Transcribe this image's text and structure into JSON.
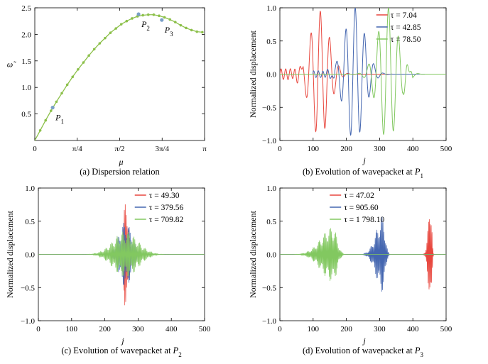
{
  "chart_data": [
    {
      "type": "line",
      "caption": "(a) Dispersion relation",
      "xlabel": "μ",
      "ylabel": "ω̃",
      "xlim": [
        0,
        3.14159
      ],
      "ylim": [
        0,
        2.5
      ],
      "xticks": [
        0,
        0.7854,
        1.5708,
        2.3562,
        3.14159
      ],
      "xtick_labels": [
        "0",
        "π/4",
        "π/2",
        "3π/4",
        "π"
      ],
      "yticks": [
        0.5,
        1.0,
        1.5,
        2.0,
        2.5
      ],
      "ytick_labels": [
        "0.5",
        "1.0",
        "1.5",
        "2.0",
        "2.5"
      ],
      "series": [
        {
          "color": "#8cc04a",
          "x": [
            0,
            0.1,
            0.2,
            0.3,
            0.4,
            0.5,
            0.6,
            0.7,
            0.8,
            0.9,
            1.0,
            1.1,
            1.2,
            1.3,
            1.4,
            1.5,
            1.6,
            1.7,
            1.8,
            1.9,
            2.0,
            2.1,
            2.2,
            2.3,
            2.4,
            2.5,
            2.6,
            2.7,
            2.8,
            2.9,
            3.0,
            3.1
          ],
          "y": [
            0,
            0.19,
            0.38,
            0.56,
            0.73,
            0.89,
            1.05,
            1.2,
            1.34,
            1.47,
            1.6,
            1.72,
            1.83,
            1.93,
            2.03,
            2.11,
            2.19,
            2.25,
            2.3,
            2.34,
            2.36,
            2.37,
            2.37,
            2.35,
            2.32,
            2.28,
            2.23,
            2.17,
            2.12,
            2.08,
            2.05,
            2.04
          ]
        }
      ],
      "annotations": [
        {
          "label": "P",
          "sub": "1",
          "x": 0.33,
          "y": 0.62
        },
        {
          "label": "P",
          "sub": "2",
          "x": 1.92,
          "y": 2.38
        },
        {
          "label": "P",
          "sub": "3",
          "x": 2.35,
          "y": 2.27
        }
      ]
    },
    {
      "type": "line",
      "caption": "(b) Evolution of wavepacket at",
      "caption_point": {
        "label": "P",
        "sub": "1"
      },
      "xlabel": "j",
      "ylabel": "Normalized displacement",
      "xlim": [
        0,
        500
      ],
      "ylim": [
        -1.0,
        1.0
      ],
      "xticks": [
        0,
        100,
        200,
        300,
        400,
        500
      ],
      "yticks": [
        -1.0,
        -0.5,
        0.0,
        0.5,
        1.0
      ],
      "ytick_labels": [
        "−1.0",
        "−0.5",
        "0.0",
        "0.5",
        "1.0"
      ],
      "legend_position": "top-right",
      "series": [
        {
          "name": "τ = 7.04",
          "color": "#e8473e",
          "center": 120,
          "width": 40,
          "period": 28,
          "amplitude": 0.95,
          "tail": 0.08,
          "tail_from": 0,
          "tail_to": 70
        },
        {
          "name": "τ = 42.85",
          "color": "#4466b0",
          "center": 225,
          "width": 42,
          "period": 28,
          "amplitude": 1.0,
          "tail": 0.05,
          "tail_from": 100,
          "tail_to": 165
        },
        {
          "name": "τ = 78.50",
          "color": "#82c860",
          "center": 325,
          "width": 42,
          "period": 30,
          "amplitude": 1.0,
          "tail": 0.05,
          "tail_from": 370,
          "tail_to": 400
        }
      ]
    },
    {
      "type": "line",
      "caption": "(c) Evolution of wavepacket at",
      "caption_point": {
        "label": "P",
        "sub": "2"
      },
      "xlabel": "j",
      "ylabel": "Normalized displacement",
      "xlim": [
        0,
        500
      ],
      "ylim": [
        -1.0,
        1.0
      ],
      "xticks": [
        0,
        100,
        200,
        300,
        400,
        500
      ],
      "yticks": [
        -1.0,
        -0.5,
        0.0,
        0.5,
        1.0
      ],
      "ytick_labels": [
        "−1.0",
        "−0.5",
        "0.0",
        "0.5",
        "1.0"
      ],
      "legend_position": "top-right",
      "series": [
        {
          "name": "τ = 49.30",
          "color": "#e8473e",
          "center": 264,
          "width": 10,
          "period": 2.8,
          "amplitude": 0.92
        },
        {
          "name": "τ = 379.56",
          "color": "#4466b0",
          "center": 262,
          "width": 28,
          "period": 2.8,
          "amplitude": 0.5
        },
        {
          "name": "τ = 709.82",
          "color": "#82c860",
          "center": 262,
          "width": 52,
          "period": 2.8,
          "amplitude": 0.35
        }
      ]
    },
    {
      "type": "line",
      "caption": "(d) Evolution of wavepacket at",
      "caption_point": {
        "label": "P",
        "sub": "3"
      },
      "xlabel": "j",
      "ylabel": "Normalized displacement",
      "xlim": [
        0,
        500
      ],
      "ylim": [
        -1.0,
        1.0
      ],
      "xticks": [
        0,
        100,
        200,
        300,
        400,
        500
      ],
      "yticks": [
        -1.0,
        -0.5,
        0.0,
        0.5,
        1.0
      ],
      "ytick_labels": [
        "−1.0",
        "−0.5",
        "0.0",
        "0.5",
        "1.0"
      ],
      "legend_position": "top-left",
      "series": [
        {
          "name": "τ = 47.02",
          "color": "#e8473e",
          "center": 455,
          "width": 6,
          "period": 2.6,
          "amplitude": 0.88,
          "skew": 1
        },
        {
          "name": "τ = 905.60",
          "color": "#4466b0",
          "center": 310,
          "width": 16,
          "period": 2.6,
          "amplitude": 0.58,
          "skew": 1
        },
        {
          "name": "τ = 1 798.10",
          "color": "#82c860",
          "center": 160,
          "width": 28,
          "period": 2.6,
          "amplitude": 0.42,
          "skew": 1
        }
      ]
    }
  ]
}
